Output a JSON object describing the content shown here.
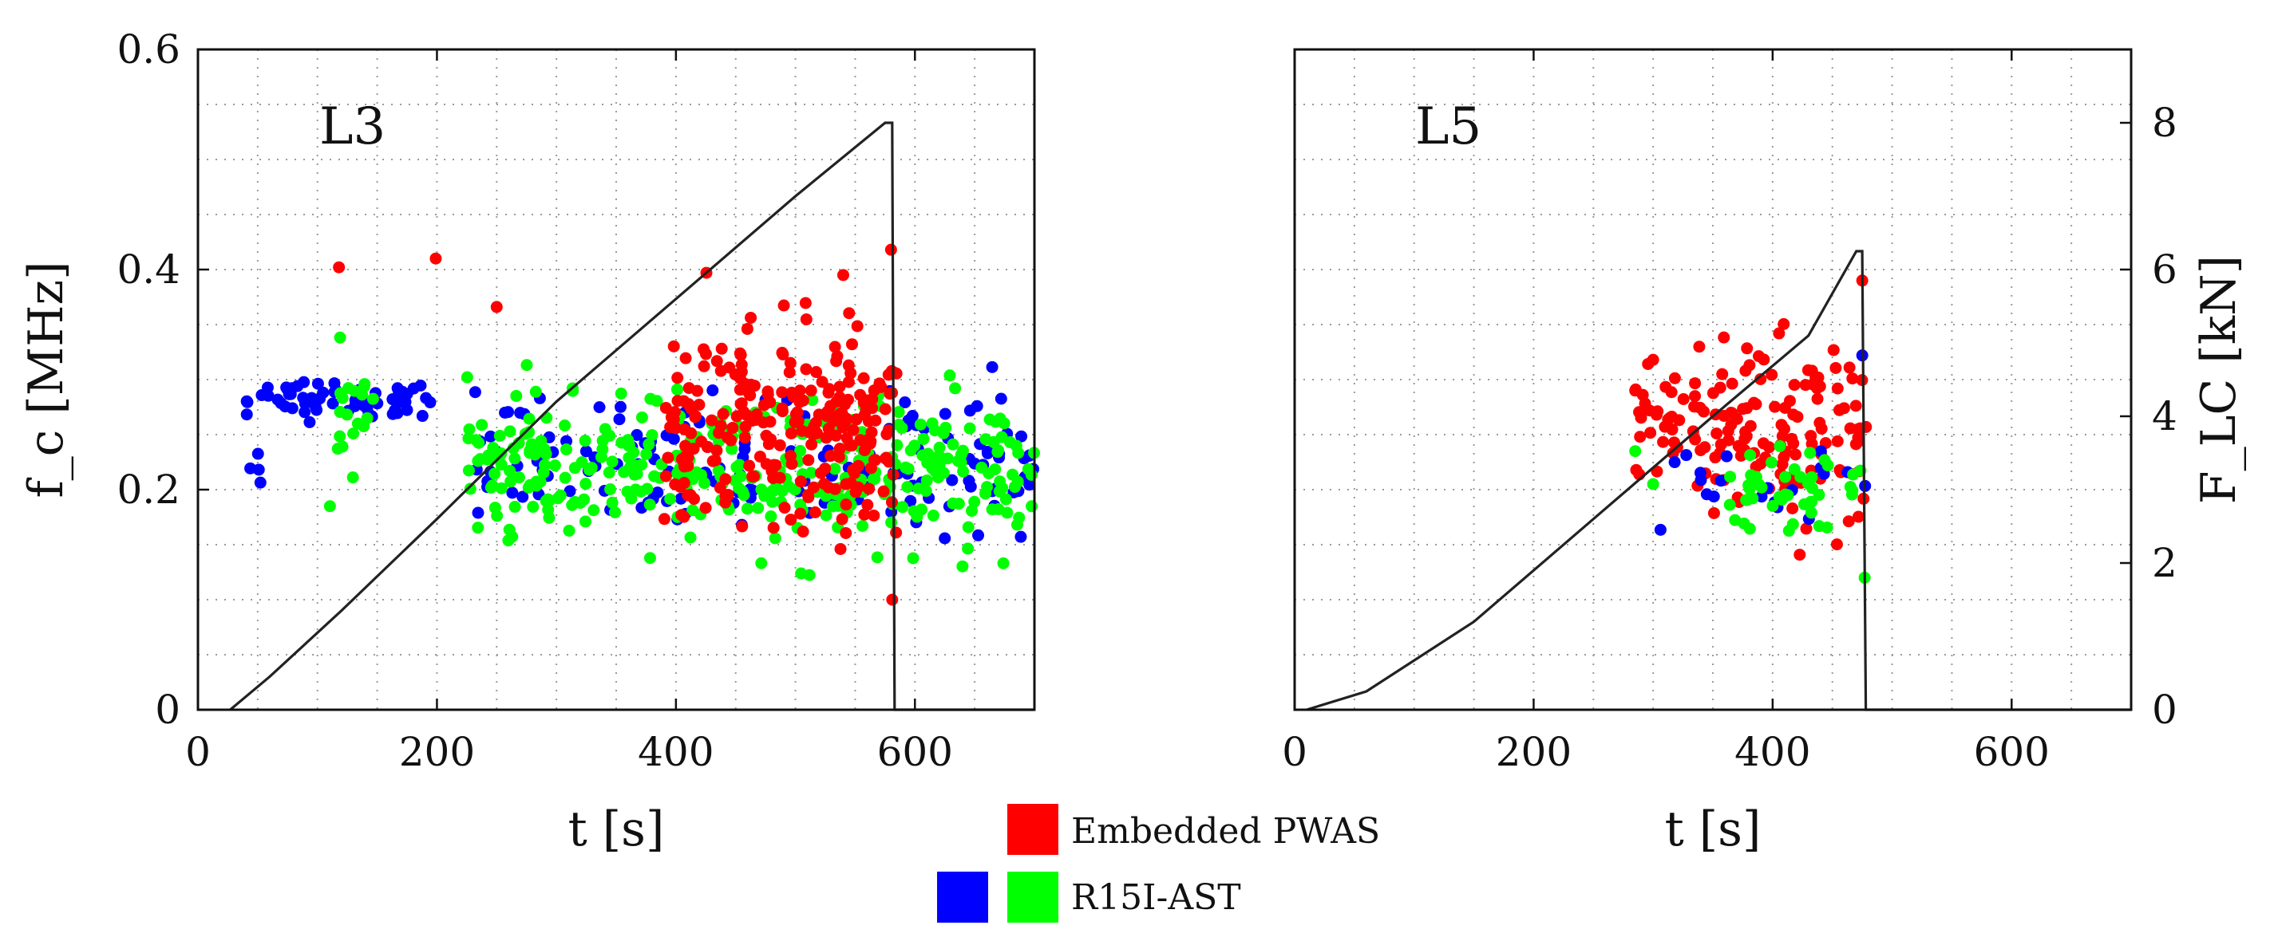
{
  "chart_data": {
    "type": "scatter",
    "shared_legend": [
      {
        "label": "Embedded PWAS",
        "colors": [
          "#ff0000"
        ]
      },
      {
        "label": "R15I-AST",
        "colors": [
          "#0000ff",
          "#00ff00"
        ]
      }
    ],
    "panels": [
      {
        "label": "L3",
        "xlabel": "t [s]",
        "ylabel_left": "f_c [MHz]",
        "xlim": [
          0,
          700
        ],
        "ylim_left": [
          0,
          0.6
        ],
        "ylim_right": [
          0,
          9
        ],
        "xticks": [
          "0",
          "200",
          "400",
          "600"
        ],
        "yticks_left": [
          "0",
          "0.2",
          "0.4",
          "0.6"
        ],
        "grid": true,
        "load_curve": {
          "axis": "right",
          "x": [
            27,
            60,
            120,
            200,
            300,
            400,
            500,
            575,
            581,
            583,
            700
          ],
          "y": [
            0,
            0.45,
            1.35,
            2.6,
            4.2,
            5.6,
            7.0,
            8.0,
            8.0,
            0,
            0
          ]
        },
        "series": [
          {
            "name": "blue",
            "color": "#0000ff",
            "clusters": [
              {
                "x_range": [
                  40,
                  195
                ],
                "y_mean": 0.283,
                "y_sd": 0.009,
                "n": 60
              },
              {
                "x_range": [
                  40,
                  55
                ],
                "y_mean": 0.222,
                "y_sd": 0.01,
                "n": 4
              },
              {
                "x_range": [
                  230,
                  700
                ],
                "y_mean": 0.225,
                "y_sd": 0.03,
                "n": 160
              }
            ]
          },
          {
            "name": "green",
            "color": "#00ff00",
            "clusters": [
              {
                "x_range": [
                  110,
                  150
                ],
                "y_mean": 0.272,
                "y_sd": 0.025,
                "n": 20
              },
              {
                "x_range": [
                  225,
                  700
                ],
                "y_mean": 0.215,
                "y_sd": 0.032,
                "n": 360
              }
            ]
          },
          {
            "name": "red",
            "color": "#ff0000",
            "clusters": [
              {
                "x_range": [
                  390,
                  585
                ],
                "y_mean": 0.255,
                "y_sd": 0.045,
                "n": 260
              }
            ],
            "points": [
              {
                "x": 118,
                "y": 0.402
              },
              {
                "x": 199,
                "y": 0.41
              },
              {
                "x": 250,
                "y": 0.366
              },
              {
                "x": 580,
                "y": 0.418
              },
              {
                "x": 581,
                "y": 0.1
              },
              {
                "x": 540,
                "y": 0.395
              }
            ]
          }
        ]
      },
      {
        "label": "L5",
        "xlabel": "t [s]",
        "ylabel_right": "F_LC [kN]",
        "xlim": [
          0,
          700
        ],
        "ylim_left": [
          0,
          0.6
        ],
        "ylim_right": [
          0,
          9
        ],
        "xticks": [
          "0",
          "200",
          "400",
          "600"
        ],
        "yticks_right": [
          "0",
          "2",
          "4",
          "6",
          "8"
        ],
        "grid": true,
        "load_curve": {
          "axis": "right",
          "x": [
            10,
            60,
            150,
            250,
            350,
            430,
            470,
            475,
            478,
            700
          ],
          "y": [
            0,
            0.25,
            1.2,
            2.6,
            4.0,
            5.1,
            6.25,
            6.25,
            0,
            0
          ]
        },
        "series": [
          {
            "name": "red",
            "color": "#ff0000",
            "clusters": [
              {
                "x_range": [
                  285,
                  480
                ],
                "y_mean": 0.255,
                "y_sd": 0.04,
                "n": 160
              }
            ],
            "points": [
              {
                "x": 475,
                "y": 0.39
              },
              {
                "x": 300,
                "y": 0.318
              },
              {
                "x": 285,
                "y": 0.29
              }
            ]
          },
          {
            "name": "blue",
            "color": "#0000ff",
            "clusters": [
              {
                "x_range": [
                  300,
                  478
                ],
                "y_mean": 0.2,
                "y_sd": 0.02,
                "n": 20
              }
            ],
            "points": [
              {
                "x": 475,
                "y": 0.322
              }
            ]
          },
          {
            "name": "green",
            "color": "#00ff00",
            "clusters": [
              {
                "x_range": [
                  360,
                  480
                ],
                "y_mean": 0.195,
                "y_sd": 0.02,
                "n": 45
              }
            ],
            "points": [
              {
                "x": 285,
                "y": 0.235
              },
              {
                "x": 300,
                "y": 0.205
              },
              {
                "x": 477,
                "y": 0.12
              }
            ]
          }
        ]
      }
    ]
  }
}
